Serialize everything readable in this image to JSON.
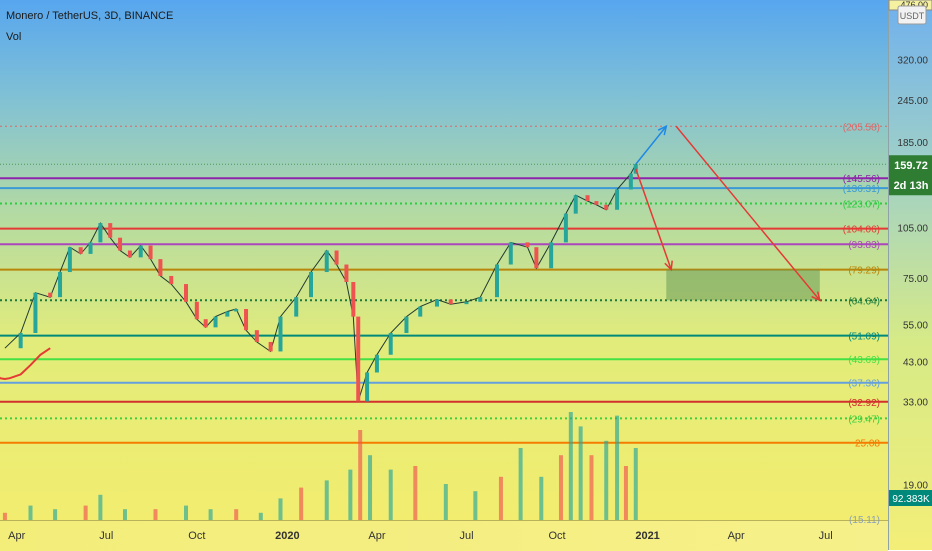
{
  "header": {
    "symbol_line": "Monero / TetherUS, 3D, BINANCE",
    "volume_label": "Vol"
  },
  "price_axis": {
    "currency": "USDT",
    "top_value": "476.00",
    "ticks": [
      "320.00",
      "245.00",
      "185.00",
      "105.00",
      "75.00",
      "55.00",
      "43.00",
      "33.00",
      "19.00"
    ]
  },
  "time_axis": {
    "labels": [
      "Apr",
      "Jul",
      "Oct",
      "2020",
      "Apr",
      "Jul",
      "Oct",
      "2021",
      "Apr",
      "Jul"
    ]
  },
  "chart_data": {
    "type": "candlestick",
    "scale": "log",
    "title": "Monero / TetherUS, 3D, BINANCE",
    "ylim": [
      15,
      476
    ],
    "x_range": [
      "2019-03-15",
      "2021-08-15"
    ],
    "current_price": "159.72",
    "countdown": "2d 13h",
    "volume_value": "92.383K",
    "closes": [
      [
        "2019-03-20",
        47
      ],
      [
        "2019-04-05",
        52
      ],
      [
        "2019-04-20",
        68
      ],
      [
        "2019-05-05",
        66
      ],
      [
        "2019-05-15",
        78
      ],
      [
        "2019-05-25",
        92
      ],
      [
        "2019-06-05",
        88
      ],
      [
        "2019-06-15",
        95
      ],
      [
        "2019-06-25",
        108
      ],
      [
        "2019-07-05",
        98
      ],
      [
        "2019-07-15",
        90
      ],
      [
        "2019-07-25",
        86
      ],
      [
        "2019-08-05",
        93
      ],
      [
        "2019-08-15",
        85
      ],
      [
        "2019-08-25",
        76
      ],
      [
        "2019-09-05",
        72
      ],
      [
        "2019-09-20",
        64
      ],
      [
        "2019-10-01",
        57
      ],
      [
        "2019-10-10",
        54
      ],
      [
        "2019-10-20",
        58
      ],
      [
        "2019-11-01",
        60
      ],
      [
        "2019-11-10",
        61
      ],
      [
        "2019-11-20",
        53
      ],
      [
        "2019-12-01",
        49
      ],
      [
        "2019-12-15",
        46
      ],
      [
        "2019-12-25",
        58
      ],
      [
        "2020-01-10",
        66
      ],
      [
        "2020-01-25",
        78
      ],
      [
        "2020-02-10",
        90
      ],
      [
        "2020-02-20",
        82
      ],
      [
        "2020-03-01",
        73
      ],
      [
        "2020-03-08",
        58
      ],
      [
        "2020-03-13",
        33
      ],
      [
        "2020-03-22",
        40
      ],
      [
        "2020-04-01",
        45
      ],
      [
        "2020-04-15",
        52
      ],
      [
        "2020-05-01",
        58
      ],
      [
        "2020-05-15",
        62
      ],
      [
        "2020-06-01",
        65
      ],
      [
        "2020-06-15",
        63
      ],
      [
        "2020-07-01",
        64
      ],
      [
        "2020-07-15",
        66
      ],
      [
        "2020-08-01",
        82
      ],
      [
        "2020-08-15",
        95
      ],
      [
        "2020-09-01",
        92
      ],
      [
        "2020-09-10",
        80
      ],
      [
        "2020-09-25",
        95
      ],
      [
        "2020-10-10",
        115
      ],
      [
        "2020-10-20",
        130
      ],
      [
        "2020-11-01",
        125
      ],
      [
        "2020-11-10",
        122
      ],
      [
        "2020-11-20",
        118
      ],
      [
        "2020-12-01",
        135
      ],
      [
        "2020-12-15",
        150
      ],
      [
        "2020-12-20",
        159.72
      ]
    ],
    "volume": [
      [
        "2019-03-20",
        2
      ],
      [
        "2019-04-15",
        4
      ],
      [
        "2019-05-10",
        3
      ],
      [
        "2019-06-10",
        4
      ],
      [
        "2019-06-25",
        7
      ],
      [
        "2019-07-20",
        3
      ],
      [
        "2019-08-20",
        3
      ],
      [
        "2019-09-20",
        4
      ],
      [
        "2019-10-15",
        3
      ],
      [
        "2019-11-10",
        3
      ],
      [
        "2019-12-05",
        2
      ],
      [
        "2019-12-25",
        6
      ],
      [
        "2020-01-15",
        9
      ],
      [
        "2020-02-10",
        11
      ],
      [
        "2020-03-05",
        14
      ],
      [
        "2020-03-15",
        25
      ],
      [
        "2020-03-25",
        18
      ],
      [
        "2020-04-15",
        14
      ],
      [
        "2020-05-10",
        15
      ],
      [
        "2020-06-10",
        10
      ],
      [
        "2020-07-10",
        8
      ],
      [
        "2020-08-05",
        12
      ],
      [
        "2020-08-25",
        20
      ],
      [
        "2020-09-15",
        12
      ],
      [
        "2020-10-05",
        18
      ],
      [
        "2020-10-15",
        30
      ],
      [
        "2020-10-25",
        26
      ],
      [
        "2020-11-05",
        18
      ],
      [
        "2020-11-20",
        22
      ],
      [
        "2020-12-01",
        29
      ],
      [
        "2020-12-10",
        15
      ],
      [
        "2020-12-20",
        20
      ]
    ],
    "horizontal_levels": [
      {
        "label": "(205.58)",
        "value": 205.58,
        "color": "#e06666",
        "style": "dotted",
        "line": false
      },
      {
        "label": "(145.56)",
        "value": 145.56,
        "color": "#8e24aa",
        "style": "solid",
        "line": true
      },
      {
        "label": "(136.31)",
        "value": 136.31,
        "color": "#3b9ad6",
        "style": "solid",
        "line": true
      },
      {
        "label": "(123.07)",
        "value": 123.07,
        "color": "#2ecc40",
        "style": "dotted",
        "line": true
      },
      {
        "label": "(104.06)",
        "value": 104.06,
        "color": "#e53935",
        "style": "solid",
        "line": true
      },
      {
        "label": "(93.83)",
        "value": 93.83,
        "color": "#ab47bc",
        "style": "solid",
        "line": true
      },
      {
        "label": "(79.29)",
        "value": 79.29,
        "color": "#b8860b",
        "style": "solid",
        "line": true
      },
      {
        "label": "(64.64)",
        "value": 64.64,
        "color": "#1b7a3a",
        "style": "dotted",
        "line": true
      },
      {
        "label": "(51.09)",
        "value": 51.09,
        "color": "#00897b",
        "style": "solid",
        "line": true
      },
      {
        "label": "(43.69)",
        "value": 43.69,
        "color": "#43e143",
        "style": "solid",
        "line": true
      },
      {
        "label": "(37.36)",
        "value": 37.36,
        "color": "#64a0e0",
        "style": "solid",
        "line": true
      },
      {
        "label": "(32.92)",
        "value": 32.92,
        "color": "#d32f2f",
        "style": "solid",
        "line": true
      },
      {
        "label": "(29.47)",
        "value": 29.47,
        "color": "#3ecf3e",
        "style": "dotted",
        "line": true
      },
      {
        "label": "25.08",
        "value": 25.08,
        "color": "#f57c00",
        "style": "solid",
        "line": true
      },
      {
        "label": "(15.11)",
        "value": 15.11,
        "color": "#8aa0b8",
        "style": "solid",
        "line": false
      }
    ],
    "zone": {
      "from_date": "2021-01-20",
      "to_date": "2021-06-25",
      "low": 64.64,
      "high": 79.29
    },
    "projections": [
      {
        "color": "#1e88e5",
        "points": [
          [
            "2020-12-20",
            159.72
          ],
          [
            "2021-01-20",
            205.58
          ]
        ]
      },
      {
        "color": "#e53935",
        "points": [
          [
            "2020-12-20",
            155
          ],
          [
            "2021-01-25",
            79.29
          ]
        ]
      },
      {
        "color": "#e53935",
        "points": [
          [
            "2021-01-30",
            205.58
          ],
          [
            "2021-06-25",
            64.64
          ]
        ]
      }
    ],
    "support_curve": [
      [
        "2019-02-20",
        78
      ],
      [
        "2019-02-25",
        62
      ],
      [
        "2019-03-01",
        50
      ],
      [
        "2019-03-05",
        43
      ],
      [
        "2019-03-10",
        40
      ],
      [
        "2019-03-15",
        38.5
      ],
      [
        "2019-03-20",
        38.3
      ],
      [
        "2019-03-25",
        38.5
      ],
      [
        "2019-04-05",
        39.5
      ],
      [
        "2019-04-15",
        42
      ],
      [
        "2019-04-25",
        45
      ],
      [
        "2019-05-05",
        47
      ]
    ]
  },
  "colors": {
    "bull": "#26a69a",
    "bear": "#ef5350",
    "accent_price": "#2e7d32",
    "countdown_bg": "#2e7d32",
    "volume_badge_bg": "#00897b"
  }
}
